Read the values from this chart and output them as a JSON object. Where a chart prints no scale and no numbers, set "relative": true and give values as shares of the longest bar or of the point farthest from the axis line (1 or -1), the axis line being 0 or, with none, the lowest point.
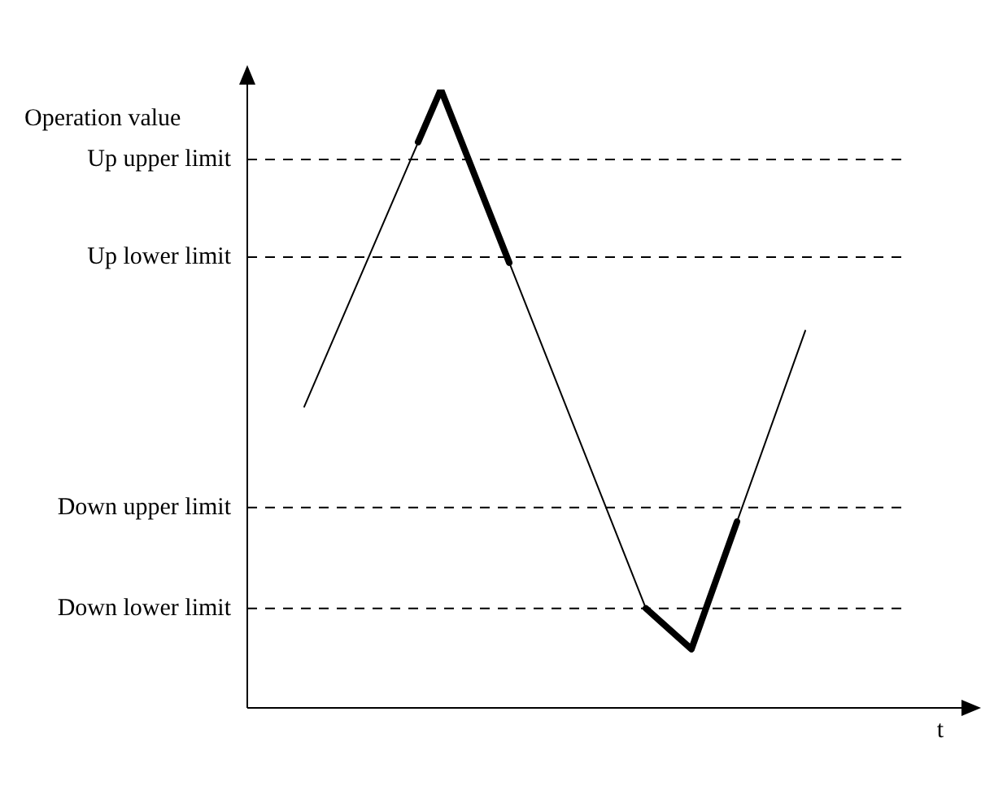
{
  "chart_data": {
    "type": "line",
    "relative": true,
    "ylabel": "Operation value",
    "xlabel": "t",
    "legend": false,
    "marker": "none",
    "categories": [
      null,
      null,
      null,
      null,
      null,
      null,
      null,
      null,
      null,
      null,
      null,
      null,
      null,
      null,
      null,
      null,
      null,
      null,
      null,
      null,
      null,
      null,
      null
    ],
    "series": [
      {
        "color": "#000000",
        "values": [
          0.487,
          null,
          null,
          null,
          null,
          null,
          1,
          null,
          null,
          null,
          null,
          null,
          null,
          null,
          null,
          0.161,
          null,
          0.095,
          null,
          null,
          null,
          null,
          0.61
        ]
      },
      {
        "color": "#000000",
        "values": [
          null,
          null,
          null,
          null,
          null,
          0.915,
          1,
          null,
          null,
          0.72,
          null,
          null,
          null,
          null,
          null,
          null,
          null,
          null,
          null,
          null,
          null,
          null,
          null
        ]
      },
      {
        "color": "#000000",
        "values": [
          null,
          null,
          null,
          null,
          null,
          null,
          null,
          null,
          null,
          null,
          null,
          null,
          null,
          null,
          null,
          0.161,
          null,
          0.095,
          null,
          0.301,
          null,
          null,
          null
        ]
      }
    ],
    "ref_lines": [
      {
        "axis": "y",
        "value": 0.887,
        "label": "Up upper limit",
        "line_style": "dashed",
        "color": "#000000"
      },
      {
        "axis": "y",
        "value": 0.729,
        "label": "Up lower limit",
        "line_style": "dashed",
        "color": "#000000"
      },
      {
        "axis": "y",
        "value": 0.324,
        "label": "Down upper limit",
        "line_style": "dashed",
        "color": "#000000"
      },
      {
        "axis": "y",
        "value": 0.161,
        "label": "Down lower limit",
        "line_style": "dashed",
        "color": "#000000"
      }
    ]
  }
}
